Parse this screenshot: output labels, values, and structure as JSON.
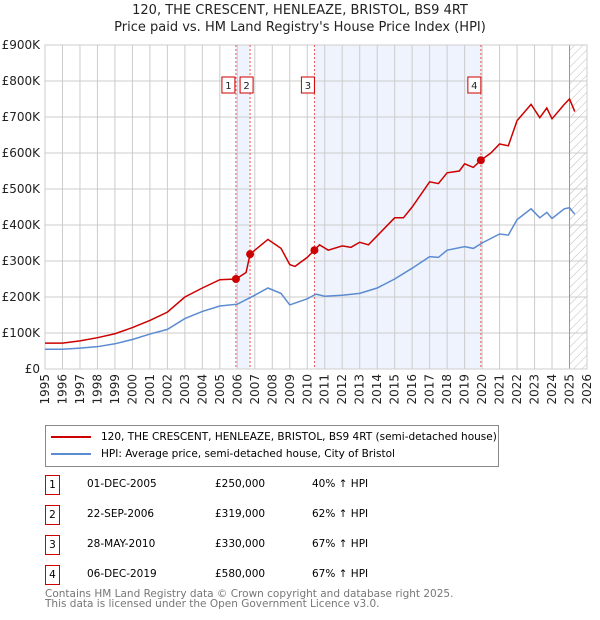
{
  "title": "120, THE CRESCENT, HENLEAZE, BRISTOL, BS9 4RT",
  "subtitle": "Price paid vs. HM Land Registry's House Price Index (HPI)",
  "chart_data": {
    "type": "line",
    "xlim": [
      1995,
      2026
    ],
    "ylim": [
      0,
      900000
    ],
    "x_ticks": [
      "1995",
      "1996",
      "1997",
      "1998",
      "1999",
      "2000",
      "2001",
      "2002",
      "2003",
      "2004",
      "2005",
      "2006",
      "2007",
      "2008",
      "2009",
      "2010",
      "2011",
      "2012",
      "2013",
      "2014",
      "2015",
      "2016",
      "2017",
      "2018",
      "2019",
      "2020",
      "2021",
      "2022",
      "2023",
      "2024",
      "2025",
      "2026"
    ],
    "y_ticks": [
      {
        "v": 0,
        "label": "£0"
      },
      {
        "v": 100000,
        "label": "£100K"
      },
      {
        "v": 200000,
        "label": "£200K"
      },
      {
        "v": 300000,
        "label": "£300K"
      },
      {
        "v": 400000,
        "label": "£400K"
      },
      {
        "v": 500000,
        "label": "£500K"
      },
      {
        "v": 600000,
        "label": "£600K"
      },
      {
        "v": 700000,
        "label": "£700K"
      },
      {
        "v": 800000,
        "label": "£800K"
      },
      {
        "v": 900000,
        "label": "£900K"
      }
    ],
    "series": [
      {
        "name": "120, THE CRESCENT, HENLEAZE, BRISTOL, BS9 4RT (semi-detached house)",
        "color": "#cc0000",
        "x": [
          1995,
          1996,
          1997,
          1998,
          1999,
          2000,
          2001,
          2002,
          2003,
          2004,
          2005,
          2005.92,
          2006.5,
          2006.73,
          2007,
          2007.75,
          2008.5,
          2009,
          2009.3,
          2010,
          2010.41,
          2010.7,
          2011.2,
          2012,
          2012.5,
          2013,
          2013.5,
          2014,
          2015,
          2015.5,
          2016,
          2017,
          2017.5,
          2018,
          2018.7,
          2019,
          2019.5,
          2019.93,
          2020.5,
          2021,
          2021.5,
          2022,
          2022.8,
          2023.3,
          2023.7,
          2024,
          2024.7,
          2025,
          2025.3
        ],
        "y": [
          72000,
          72000,
          78000,
          87000,
          98000,
          115000,
          135000,
          158000,
          200000,
          225000,
          248000,
          250000,
          268000,
          319000,
          330000,
          360000,
          335000,
          290000,
          285000,
          310000,
          330000,
          345000,
          330000,
          342000,
          338000,
          352000,
          345000,
          370000,
          420000,
          420000,
          450000,
          520000,
          515000,
          545000,
          550000,
          570000,
          560000,
          580000,
          600000,
          625000,
          620000,
          690000,
          735000,
          698000,
          725000,
          695000,
          735000,
          750000,
          715000
        ]
      },
      {
        "name": "HPI: Average price, semi-detached house, City of Bristol",
        "color": "#5b8bd0",
        "x": [
          1995,
          1996,
          1997,
          1998,
          1999,
          2000,
          2001,
          2002,
          2003,
          2004,
          2005,
          2006,
          2007,
          2007.75,
          2008.5,
          2009,
          2010,
          2010.5,
          2011,
          2012,
          2013,
          2014,
          2015,
          2016,
          2017,
          2017.5,
          2018,
          2019,
          2019.5,
          2020,
          2021,
          2021.5,
          2022,
          2022.8,
          2023.3,
          2023.7,
          2024,
          2024.7,
          2025,
          2025.3
        ],
        "y": [
          55000,
          55000,
          58000,
          62000,
          70000,
          82000,
          97000,
          110000,
          140000,
          160000,
          175000,
          180000,
          205000,
          225000,
          210000,
          178000,
          195000,
          208000,
          202000,
          205000,
          210000,
          225000,
          250000,
          280000,
          312000,
          310000,
          330000,
          340000,
          335000,
          350000,
          375000,
          372000,
          415000,
          445000,
          420000,
          435000,
          418000,
          445000,
          448000,
          430000
        ]
      }
    ],
    "sales": [
      {
        "label": "1",
        "x": 2005.92,
        "y": 250000
      },
      {
        "label": "2",
        "x": 2006.73,
        "y": 319000
      },
      {
        "label": "3",
        "x": 2010.41,
        "y": 330000
      },
      {
        "label": "4",
        "x": 2019.93,
        "y": 580000
      }
    ],
    "shaded": [
      [
        2005.92,
        2006.73
      ],
      [
        2010.41,
        2019.93
      ]
    ],
    "hatched_from": 2025.0
  },
  "legend": [
    "120, THE CRESCENT, HENLEAZE, BRISTOL, BS9 4RT (semi-detached house)",
    "HPI: Average price, semi-detached house, City of Bristol"
  ],
  "transactions": [
    {
      "n": "1",
      "date": "01-DEC-2005",
      "price": "£250,000",
      "hpi": "40% ↑ HPI"
    },
    {
      "n": "2",
      "date": "22-SEP-2006",
      "price": "£319,000",
      "hpi": "62% ↑ HPI"
    },
    {
      "n": "3",
      "date": "28-MAY-2010",
      "price": "£330,000",
      "hpi": "67% ↑ HPI"
    },
    {
      "n": "4",
      "date": "06-DEC-2019",
      "price": "£580,000",
      "hpi": "67% ↑ HPI"
    }
  ],
  "footer": [
    "Contains HM Land Registry data © Crown copyright and database right 2025.",
    "This data is licensed under the Open Government Licence v3.0."
  ]
}
